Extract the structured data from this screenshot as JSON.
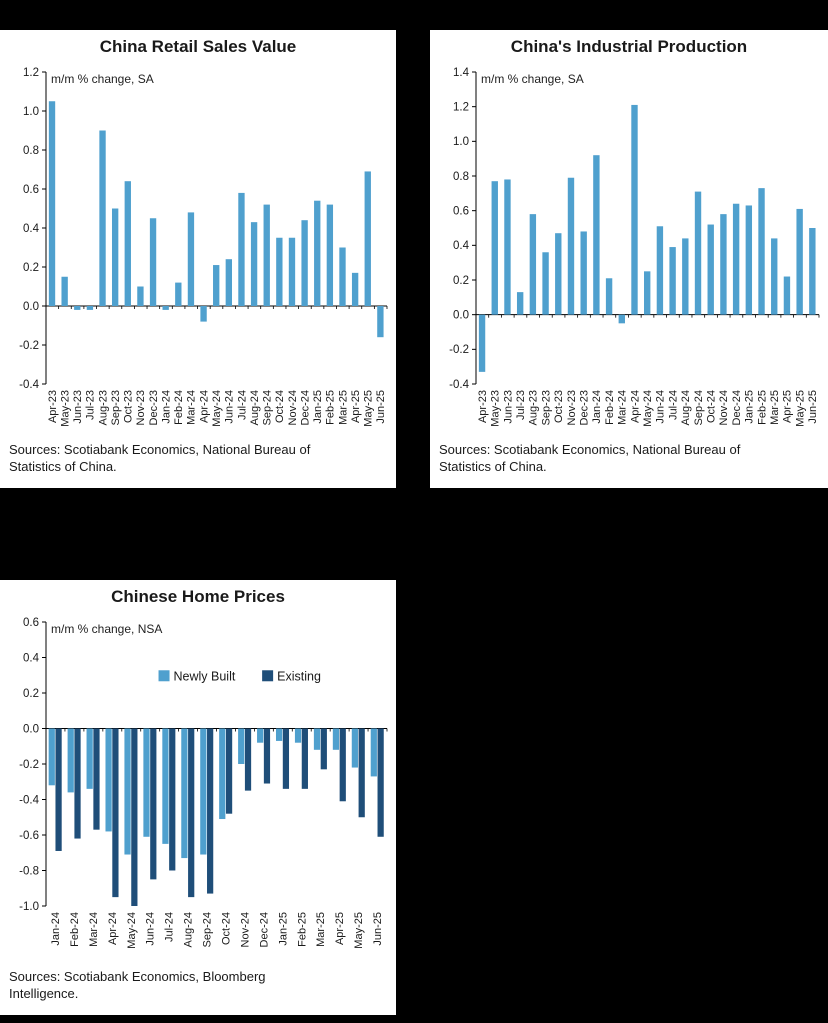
{
  "page": {
    "background": "#000000",
    "panel_background": "#ffffff"
  },
  "colors": {
    "light_blue": "#4fa0ce",
    "dark_blue": "#1f4e79",
    "axis": "#000000",
    "text": "#1a1a1a"
  },
  "chart_data": [
    {
      "type": "bar",
      "title": "China Retail Sales Value",
      "note": "m/m % change, SA",
      "ylim": [
        -0.4,
        1.2
      ],
      "ytick_step": 0.2,
      "grid": false,
      "legend": false,
      "categories": [
        "Apr-23",
        "May-23",
        "Jun-23",
        "Jul-23",
        "Aug-23",
        "Sep-23",
        "Oct-23",
        "Nov-23",
        "Dec-23",
        "Jan-24",
        "Feb-24",
        "Mar-24",
        "Apr-24",
        "May-24",
        "Jun-24",
        "Jul-24",
        "Aug-24",
        "Sep-24",
        "Oct-24",
        "Nov-24",
        "Dec-24",
        "Jan-25",
        "Feb-25",
        "Mar-25",
        "Apr-25",
        "May-25",
        "Jun-25"
      ],
      "series": [
        {
          "color": "#4fa0ce",
          "values": [
            1.05,
            0.15,
            -0.02,
            -0.02,
            0.9,
            0.5,
            0.64,
            0.1,
            0.45,
            -0.02,
            0.12,
            0.48,
            -0.08,
            0.21,
            0.24,
            0.58,
            0.43,
            0.52,
            0.35,
            0.35,
            0.44,
            0.54,
            0.52,
            0.3,
            0.17,
            0.69,
            -0.16
          ]
        }
      ],
      "source": "Sources: Scotiabank Economics, National Bureau of Statistics of China."
    },
    {
      "type": "bar",
      "title": "China's Industrial Production",
      "note": "m/m % change, SA",
      "ylim": [
        -0.4,
        1.4
      ],
      "ytick_step": 0.2,
      "grid": false,
      "legend": false,
      "categories": [
        "Apr-23",
        "May-23",
        "Jun-23",
        "Jul-23",
        "Aug-23",
        "Sep-23",
        "Oct-23",
        "Nov-23",
        "Dec-23",
        "Jan-24",
        "Feb-24",
        "Mar-24",
        "Apr-24",
        "May-24",
        "Jun-24",
        "Jul-24",
        "Aug-24",
        "Sep-24",
        "Oct-24",
        "Nov-24",
        "Dec-24",
        "Jan-25",
        "Feb-25",
        "Mar-25",
        "Apr-25",
        "May-25",
        "Jun-25"
      ],
      "series": [
        {
          "color": "#4fa0ce",
          "values": [
            -0.33,
            0.77,
            0.78,
            0.13,
            0.58,
            0.36,
            0.47,
            0.79,
            0.48,
            0.92,
            0.21,
            -0.05,
            1.21,
            0.25,
            0.51,
            0.39,
            0.44,
            0.71,
            0.52,
            0.58,
            0.64,
            0.63,
            0.73,
            0.44,
            0.22,
            0.61,
            0.5
          ]
        }
      ],
      "source": "Sources: Scotiabank Economics, National Bureau of Statistics of China."
    },
    {
      "type": "bar",
      "title": "Chinese Home Prices",
      "note": "m/m % change, NSA",
      "ylim": [
        -1.0,
        0.6
      ],
      "ytick_step": 0.2,
      "grid": false,
      "legend": true,
      "legend_position": "inside-top",
      "categories": [
        "Jan-24",
        "Feb-24",
        "Mar-24",
        "Apr-24",
        "May-24",
        "Jun-24",
        "Jul-24",
        "Aug-24",
        "Sep-24",
        "Oct-24",
        "Nov-24",
        "Dec-24",
        "Jan-25",
        "Feb-25",
        "Mar-25",
        "Apr-25",
        "May-25",
        "Jun-25"
      ],
      "series": [
        {
          "name": "Newly Built",
          "color": "#4fa0ce",
          "values": [
            -0.32,
            -0.36,
            -0.34,
            -0.58,
            -0.71,
            -0.61,
            -0.65,
            -0.73,
            -0.71,
            -0.51,
            -0.2,
            -0.08,
            -0.07,
            -0.08,
            -0.12,
            -0.12,
            -0.22,
            -0.27
          ]
        },
        {
          "name": "Existing",
          "color": "#1f4e79",
          "values": [
            -0.69,
            -0.62,
            -0.57,
            -0.95,
            -1.0,
            -0.85,
            -0.8,
            -0.95,
            -0.93,
            -0.48,
            -0.35,
            -0.31,
            -0.34,
            -0.34,
            -0.23,
            -0.41,
            -0.5,
            -0.61
          ]
        }
      ],
      "source": "Sources: Scotiabank Economics, Bloomberg Intelligence."
    }
  ]
}
